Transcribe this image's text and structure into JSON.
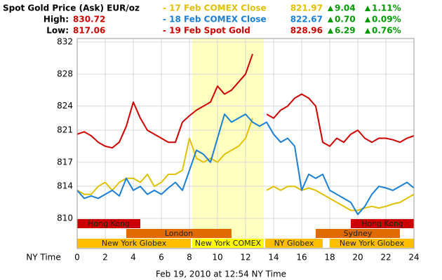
{
  "chart_data": {
    "type": "line",
    "title": "Spot Gold Price (Ask) EUR/oz",
    "high_label": "High:",
    "high": "830.72",
    "low_label": "Low:",
    "low": "817.06",
    "x_label": "NY Time",
    "footer": "Feb 19, 2010 at 12:54 NY Time",
    "xlim": [
      0,
      24
    ],
    "xticks": [
      0,
      2,
      4,
      6,
      8,
      10,
      12,
      14,
      16,
      18,
      20,
      22,
      24
    ],
    "ylim": [
      810,
      832
    ],
    "yticks": [
      810,
      814,
      817,
      821,
      824,
      828,
      832
    ],
    "grid": true,
    "x": [
      0,
      0.5,
      1,
      1.5,
      2,
      2.5,
      3,
      3.5,
      4,
      4.5,
      5,
      5.5,
      6,
      6.5,
      7,
      7.5,
      8,
      8.5,
      9,
      9.5,
      10,
      10.5,
      11,
      11.5,
      12,
      12.5,
      13,
      13.5,
      14,
      14.5,
      15,
      15.5,
      16,
      16.5,
      17,
      17.5,
      18,
      18.5,
      19,
      19.5,
      20,
      20.5,
      21,
      21.5,
      22,
      22.5,
      23,
      23.5,
      24
    ],
    "series": [
      {
        "name": "- 17 Feb COMEX Close",
        "color": "#e0c000",
        "close": "821.97",
        "change": "9.04",
        "change_pct": "1.11%",
        "values": [
          813.5,
          813,
          813,
          814,
          814.5,
          813.5,
          814.5,
          815,
          815,
          814.5,
          815.5,
          814,
          814.5,
          815.5,
          815.5,
          816,
          820,
          817.5,
          817,
          817.5,
          817,
          818,
          818.5,
          819,
          820,
          822.5,
          null,
          813.5,
          814,
          813.5,
          814,
          814,
          813.5,
          813.8,
          813.5,
          813,
          812.5,
          812,
          811.5,
          811,
          811,
          811.3,
          811.5,
          811.3,
          811.5,
          811.8,
          812,
          812.5,
          813
        ]
      },
      {
        "name": "- 18 Feb COMEX Close",
        "color": "#1a7fd4",
        "close": "822.67",
        "change": "0.70",
        "change_pct": "0.09%",
        "values": [
          813.5,
          812.5,
          812.8,
          812.5,
          813,
          813.5,
          812.8,
          815,
          813.5,
          814,
          813,
          813.5,
          813,
          813.8,
          814.5,
          813.5,
          816,
          818.5,
          818,
          817,
          820,
          823,
          822,
          822.5,
          823,
          822,
          821.5,
          822,
          820.5,
          819.5,
          820,
          819,
          813.5,
          815.5,
          815,
          815.5,
          813.5,
          813,
          812.5,
          812,
          810.5,
          811.5,
          813,
          814,
          813.8,
          813.5,
          814,
          814.5,
          813.8
        ]
      },
      {
        "name": "- 19 Feb Spot Gold",
        "color": "#cc0000",
        "close": "828.96",
        "change": "6.29",
        "change_pct": "0.76%",
        "values": [
          820.5,
          820.8,
          820.3,
          819.5,
          819,
          818.8,
          819.5,
          821.5,
          824.5,
          822.5,
          821,
          820.5,
          820,
          819.5,
          819.5,
          822,
          822.8,
          823.5,
          824,
          824.5,
          826.5,
          825.5,
          826,
          827,
          828,
          830.5,
          null,
          823,
          822.5,
          823.5,
          824,
          825,
          825.5,
          825,
          824,
          819.5,
          819,
          820,
          819.5,
          820.5,
          821,
          820,
          819.5,
          820,
          820,
          819.8,
          819.5,
          820,
          820.3
        ]
      }
    ],
    "highlight": {
      "start": 8.2,
      "end": 13.3,
      "color": "#ffffc0"
    },
    "session_rows": [
      [
        {
          "name": "Hong Kong",
          "start": 0,
          "end": 4.5,
          "color": "#cc0000"
        },
        {
          "name": "Hong Kong",
          "start": 19.5,
          "end": 24,
          "color": "#cc0000"
        }
      ],
      [
        {
          "name": "London",
          "start": 3.5,
          "end": 11,
          "color": "#e06a00"
        },
        {
          "name": "Sydney",
          "start": 17,
          "end": 23,
          "color": "#e06a00"
        }
      ],
      [
        {
          "name": "New York Globex",
          "start": 0,
          "end": 8.1,
          "color": "#ffbe00"
        },
        {
          "name": "New York COMEX",
          "start": 8.2,
          "end": 13.3,
          "color": "#ffff00"
        },
        {
          "name": "NY Globex",
          "start": 13.4,
          "end": 17.5,
          "color": "#ffbe00"
        },
        {
          "name": "New York Globex",
          "start": 18,
          "end": 24,
          "color": "#ffbe00"
        }
      ]
    ]
  }
}
